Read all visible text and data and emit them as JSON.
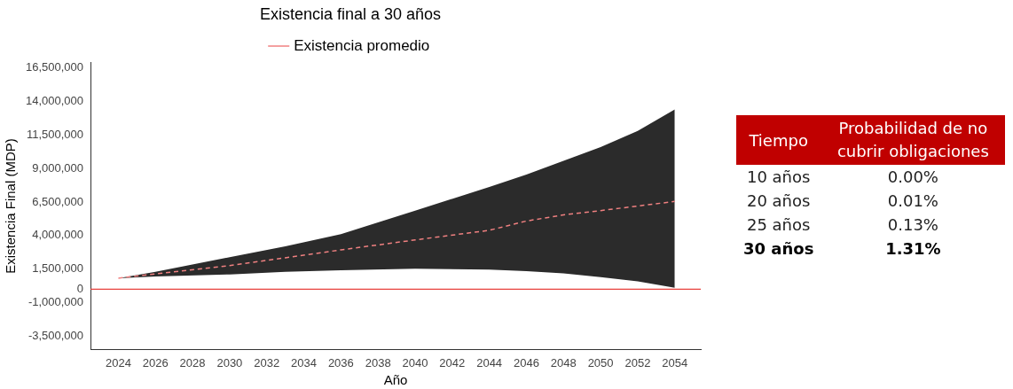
{
  "chart_data": [
    {
      "type": "line",
      "title": "Existencia final a 30 años",
      "xlabel": "Año",
      "ylabel": "Existencia Final (MDP)",
      "x": [
        2024,
        2026,
        2030,
        2033,
        2036,
        2040,
        2044,
        2046,
        2048,
        2050,
        2052,
        2054
      ],
      "series": [
        {
          "name": "Existencia promedio",
          "color": "#f08080",
          "line_style": "dashed",
          "values": [
            820000,
            1140000,
            1760000,
            2340000,
            2930000,
            3670000,
            4390000,
            5080000,
            5540000,
            5860000,
            6200000,
            6540000
          ],
          "lower": [
            820000,
            950000,
            1100000,
            1300000,
            1410000,
            1520000,
            1460000,
            1350000,
            1170000,
            900000,
            590000,
            100000
          ],
          "upper": [
            820000,
            1300000,
            2380000,
            3200000,
            4100000,
            5860000,
            7620000,
            8550000,
            9570000,
            10600000,
            11800000,
            13400000
          ]
        }
      ],
      "xlim": [
        2022.5,
        2055.4
      ],
      "xticks": [
        2024,
        2026,
        2028,
        2030,
        2032,
        2034,
        2036,
        2038,
        2040,
        2042,
        2044,
        2046,
        2048,
        2050,
        2052,
        2054
      ],
      "ylim": [
        -4500000,
        16900000
      ],
      "yticks": [
        {
          "value": -3500000,
          "label": "-3,500,000"
        },
        {
          "value": -1000000,
          "label": "-1,000,000"
        },
        0,
        {
          "value": 1500000,
          "label": "1,500,000"
        },
        {
          "value": 4000000,
          "label": "4,000,000"
        },
        {
          "value": 6500000,
          "label": "6,500,000"
        },
        {
          "value": 9000000,
          "label": "9,000,000"
        },
        {
          "value": 11500000,
          "label": "11,500,000"
        },
        {
          "value": 14000000,
          "label": "14,000,000"
        },
        {
          "value": 16500000,
          "label": "16,500,000"
        }
      ],
      "ref_lines": [
        {
          "axis": "y",
          "value": 0,
          "color": "#e8403c"
        }
      ],
      "grid": false,
      "legend": "top"
    },
    {
      "type": "other",
      "xlabel": "Tiempo",
      "ylabel": "Probabilidad de no cubrir obligaciones",
      "categories": [
        "10 años",
        "20 años",
        "25 años",
        "30 años"
      ],
      "value_labels": [
        "0.00%",
        "0.01%",
        "0.13%",
        "1.31%"
      ]
    }
  ]
}
